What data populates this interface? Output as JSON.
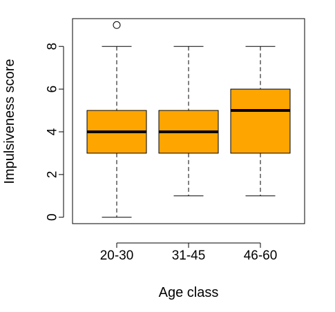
{
  "chart_data": {
    "type": "box",
    "xlabel": "Age class",
    "ylabel": "Impulsiveness score",
    "ylim": [
      -0.3,
      9.3
    ],
    "yticks": [
      0,
      2,
      4,
      6,
      8
    ],
    "box_color": "#FFA500",
    "categories": [
      "20-30",
      "31-45",
      "46-60"
    ],
    "boxes": [
      {
        "label": "20-30",
        "min": 0,
        "q1": 3,
        "median": 4,
        "q3": 5,
        "max": 8,
        "outliers": [
          9
        ]
      },
      {
        "label": "31-45",
        "min": 1,
        "q1": 3,
        "median": 4,
        "q3": 5,
        "max": 8,
        "outliers": []
      },
      {
        "label": "46-60",
        "min": 1,
        "q1": 3,
        "median": 5,
        "q3": 6,
        "max": 8,
        "outliers": []
      }
    ]
  }
}
